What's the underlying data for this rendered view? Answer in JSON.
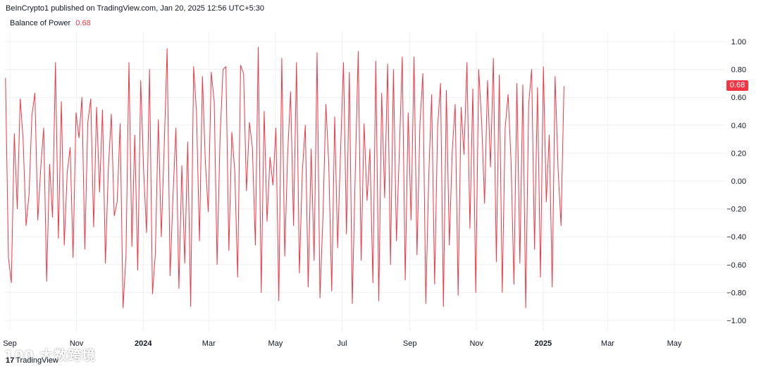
{
  "header": {
    "text": "BeInCrypto1 published on TradingView.com, Jan 20, 2025 12:56 UTC+5:30"
  },
  "legend": {
    "name": "Balance of Power",
    "value": "0.68"
  },
  "last_value_label": "0.68",
  "watermark": {
    "text": "100 大数跨境",
    "logo": "TradingView",
    "logo_mark": "17"
  },
  "colors": {
    "line": "#f23645",
    "grid": "#eef0f3",
    "axis_text": "#131722",
    "badge": "#f23645"
  },
  "chart_data": {
    "type": "line",
    "title": "Balance of Power",
    "y_ticks": [
      "1.00",
      "0.80",
      "0.60",
      "0.40",
      "0.20",
      "0.00",
      "−0.20",
      "−0.40",
      "−0.60",
      "−0.80",
      "−1.00"
    ],
    "y_tick_values": [
      1.0,
      0.8,
      0.6,
      0.4,
      0.2,
      0.0,
      -0.2,
      -0.4,
      -0.6,
      -0.8,
      -1.0
    ],
    "ylim": [
      -1.0,
      1.0
    ],
    "x_ticks": [
      {
        "label": "Sep",
        "bold": false,
        "date": "2023-09-01"
      },
      {
        "label": "Nov",
        "bold": false,
        "date": "2023-11-01"
      },
      {
        "label": "2024",
        "bold": true,
        "date": "2024-01-01"
      },
      {
        "label": "Mar",
        "bold": false,
        "date": "2024-03-01"
      },
      {
        "label": "May",
        "bold": false,
        "date": "2024-05-01"
      },
      {
        "label": "Jul",
        "bold": false,
        "date": "2024-07-01"
      },
      {
        "label": "Sep",
        "bold": false,
        "date": "2024-09-01"
      },
      {
        "label": "Nov",
        "bold": false,
        "date": "2024-11-01"
      },
      {
        "label": "2025",
        "bold": true,
        "date": "2025-01-01"
      },
      {
        "label": "Mar",
        "bold": false,
        "date": "2025-03-01"
      },
      {
        "label": "May",
        "bold": false,
        "date": "2025-05-01"
      }
    ],
    "grid": true,
    "series": [
      {
        "color": "#f23645",
        "x_start": "2023-08-28",
        "x_end": "2025-01-20",
        "values": [
          0.74,
          -0.55,
          -0.73,
          0.34,
          -0.2,
          0.59,
          0.3,
          -0.32,
          -0.1,
          0.47,
          0.63,
          -0.28,
          0.1,
          0.38,
          -0.72,
          0.12,
          -0.26,
          0.85,
          -0.41,
          0.57,
          -0.46,
          0.06,
          0.24,
          -0.55,
          0.49,
          0.31,
          0.6,
          -0.49,
          0.42,
          0.59,
          -0.33,
          0.53,
          -0.08,
          0.51,
          -0.59,
          0.09,
          0.48,
          -0.25,
          -0.15,
          0.41,
          -0.91,
          -0.54,
          0.85,
          -0.47,
          0.33,
          -0.64,
          0.72,
          0.08,
          -0.37,
          0.8,
          -0.81,
          -0.52,
          0.44,
          -0.4,
          0.24,
          0.95,
          -0.68,
          -0.1,
          0.38,
          -0.77,
          0.11,
          -0.59,
          0.28,
          -0.9,
          0.82,
          0.49,
          -0.43,
          0.75,
          0.14,
          -0.22,
          0.78,
          0.57,
          -0.6,
          0.31,
          0.8,
          0.82,
          -0.5,
          0.35,
          0.07,
          -0.69,
          0.83,
          0.77,
          -0.07,
          0.42,
          0.24,
          -0.46,
          0.96,
          -0.8,
          0.5,
          -0.29,
          0.17,
          -0.03,
          0.38,
          -0.86,
          0.88,
          -0.54,
          0.19,
          0.64,
          -0.32,
          0.85,
          -0.66,
          0.07,
          0.4,
          -0.76,
          0.23,
          -0.57,
          0.92,
          -0.84,
          -0.26,
          0.55,
          0.12,
          -0.79,
          0.46,
          -0.48,
          0.21,
          0.85,
          -0.38,
          0.78,
          -0.88,
          0.06,
          0.93,
          -0.57,
          0.41,
          -0.14,
          0.23,
          -0.73,
          0.86,
          -0.86,
          0.63,
          -0.12,
          0.84,
          -0.6,
          0.8,
          -0.43,
          0.22,
          0.89,
          -0.71,
          0.49,
          -0.28,
          0.89,
          -0.53,
          0.41,
          0.77,
          -0.88,
          0.04,
          0.62,
          -0.74,
          0.38,
          0.7,
          -0.9,
          0.65,
          -0.46,
          0.21,
          0.55,
          -0.82,
          0.53,
          0.19,
          0.85,
          -0.34,
          0.66,
          -0.8,
          0.8,
          0.42,
          -0.16,
          0.72,
          0.1,
          0.88,
          -0.58,
          0.76,
          -0.8,
          0.38,
          0.62,
          0.14,
          -0.74,
          0.7,
          -0.59,
          0.69,
          -0.91,
          0.55,
          0.8,
          -0.49,
          0.67,
          -0.69,
          0.82,
          -0.15,
          0.33,
          -0.76,
          0.75,
          0.09,
          -0.32,
          0.68
        ]
      }
    ]
  }
}
